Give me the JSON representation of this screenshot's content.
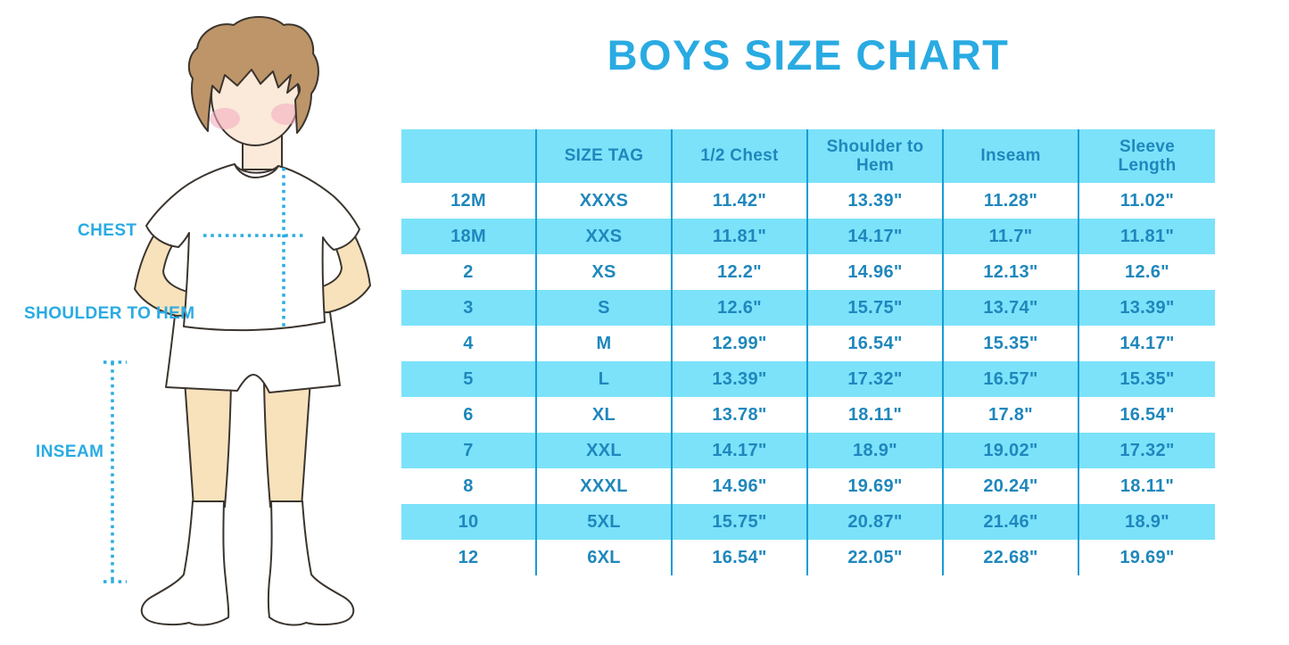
{
  "title": "BOYS SIZE CHART",
  "colors": {
    "accent_blue": "#29ABE2",
    "row_band_cyan": "#7BE2FA",
    "grid_line": "#189CD4",
    "cell_text": "#1F87BC",
    "skin": "#F8E2BC",
    "hair": "#BD9569"
  },
  "figure": {
    "labels": {
      "chest": "CHEST",
      "shoulder_to_hem": "SHOULDER TO HEM",
      "inseam": "INSEAM"
    }
  },
  "chart_data": {
    "type": "table",
    "title": "BOYS SIZE CHART",
    "columns": [
      "",
      "SIZE TAG",
      "1/2 Chest",
      "Shoulder to Hem",
      "Inseam",
      "Sleeve Length"
    ],
    "rows": [
      [
        "12M",
        "XXXS",
        "11.42\"",
        "13.39\"",
        "11.28\"",
        "11.02\""
      ],
      [
        "18M",
        "XXS",
        "11.81\"",
        "14.17\"",
        "11.7\"",
        "11.81\""
      ],
      [
        "2",
        "XS",
        "12.2\"",
        "14.96\"",
        "12.13\"",
        "12.6\""
      ],
      [
        "3",
        "S",
        "12.6\"",
        "15.75\"",
        "13.74\"",
        "13.39\""
      ],
      [
        "4",
        "M",
        "12.99\"",
        "16.54\"",
        "15.35\"",
        "14.17\""
      ],
      [
        "5",
        "L",
        "13.39\"",
        "17.32\"",
        "16.57\"",
        "15.35\""
      ],
      [
        "6",
        "XL",
        "13.78\"",
        "18.11\"",
        "17.8\"",
        "16.54\""
      ],
      [
        "7",
        "XXL",
        "14.17\"",
        "18.9\"",
        "19.02\"",
        "17.32\""
      ],
      [
        "8",
        "XXXL",
        "14.96\"",
        "19.69\"",
        "20.24\"",
        "18.11\""
      ],
      [
        "10",
        "5XL",
        "15.75\"",
        "20.87\"",
        "21.46\"",
        "18.9\""
      ],
      [
        "12",
        "6XL",
        "16.54\"",
        "22.05\"",
        "22.68\"",
        "19.69\""
      ]
    ],
    "row_shading": "alternating white / light-cyan, header cyan",
    "units": "inches"
  }
}
